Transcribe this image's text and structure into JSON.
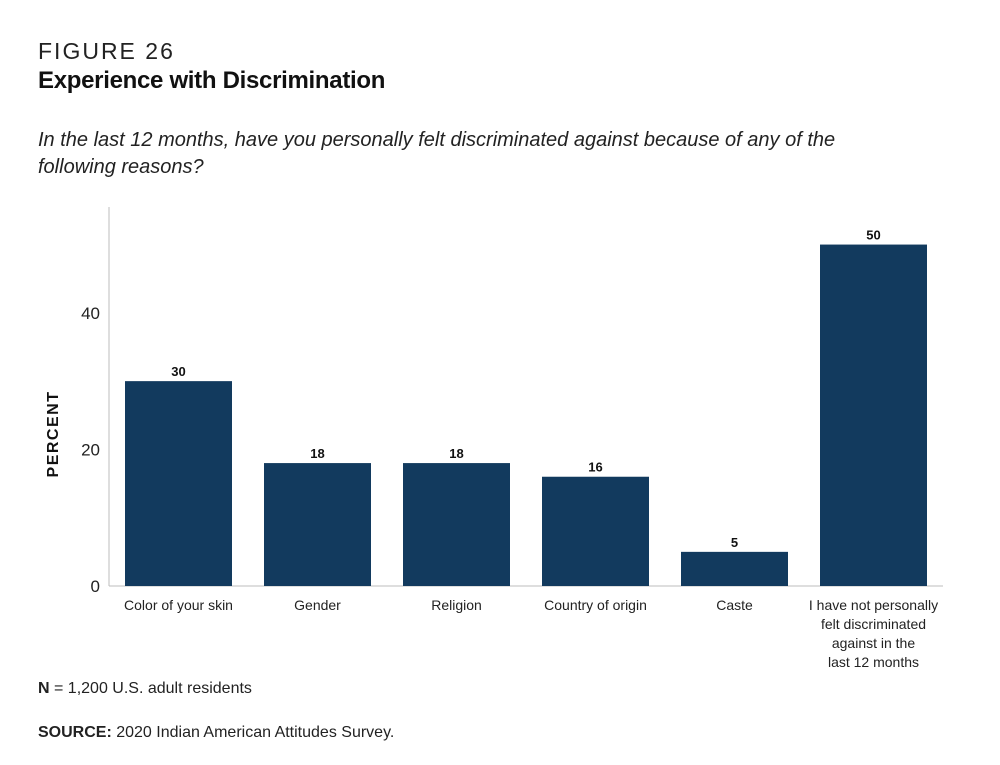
{
  "figure": {
    "label": "FIGURE 26",
    "title": "Experience with Discrimination",
    "subtitle": "In the last 12 months, have you personally felt discriminated against because of any of the following reasons?"
  },
  "notes": {
    "n_label": "N",
    "n_text": " = 1,200 U.S. adult residents",
    "source_label": "SOURCE:",
    "source_text": " 2020 Indian American Attitudes Survey."
  },
  "chart_data": {
    "type": "bar",
    "categories": [
      "Color of your skin",
      "Gender",
      "Religion",
      "Country of origin",
      "Caste",
      "I have not personally felt discriminated against in the last 12 months"
    ],
    "category_lines": [
      [
        "Color of your skin"
      ],
      [
        "Gender"
      ],
      [
        "Religion"
      ],
      [
        "Country of origin"
      ],
      [
        "Caste"
      ],
      [
        "I have not personally",
        "felt discriminated",
        "against in the",
        "last 12 months"
      ]
    ],
    "values": [
      30,
      18,
      18,
      16,
      5,
      50
    ],
    "value_labels": [
      "30",
      "18",
      "18",
      "16",
      "5",
      "50"
    ],
    "ylabel": "PERCENT",
    "xlabel": "",
    "ylim": [
      0,
      55.5
    ],
    "yticks": [
      0,
      20,
      40
    ],
    "grid": false,
    "legend": "none",
    "bar_color": "#123a5e"
  }
}
